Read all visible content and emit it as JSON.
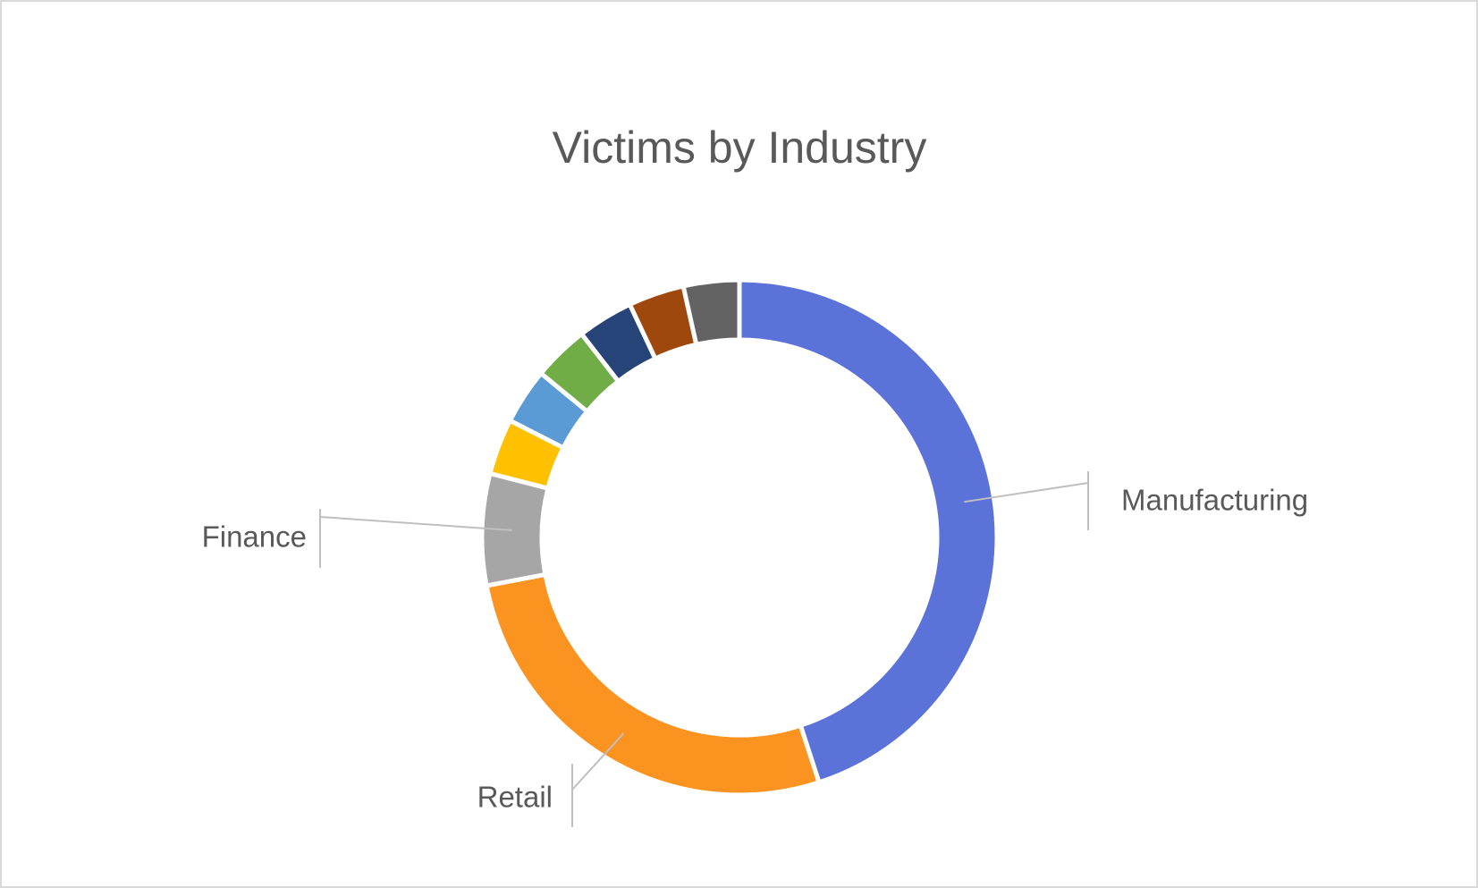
{
  "chart_data": {
    "type": "donut",
    "title": "Victims by Industry",
    "categories": [
      "Manufacturing",
      "Retail",
      "Finance",
      null,
      null,
      null,
      null,
      null,
      null
    ],
    "values": [
      45,
      27,
      7,
      3.5,
      3.5,
      3.5,
      3.5,
      3.5,
      3.5
    ],
    "colors": [
      "#5b73d8",
      "#fb9320",
      "#a6a6a6",
      "#ffc000",
      "#5b9bd5",
      "#70ad47",
      "#264478",
      "#9e480e",
      "#636363"
    ]
  }
}
